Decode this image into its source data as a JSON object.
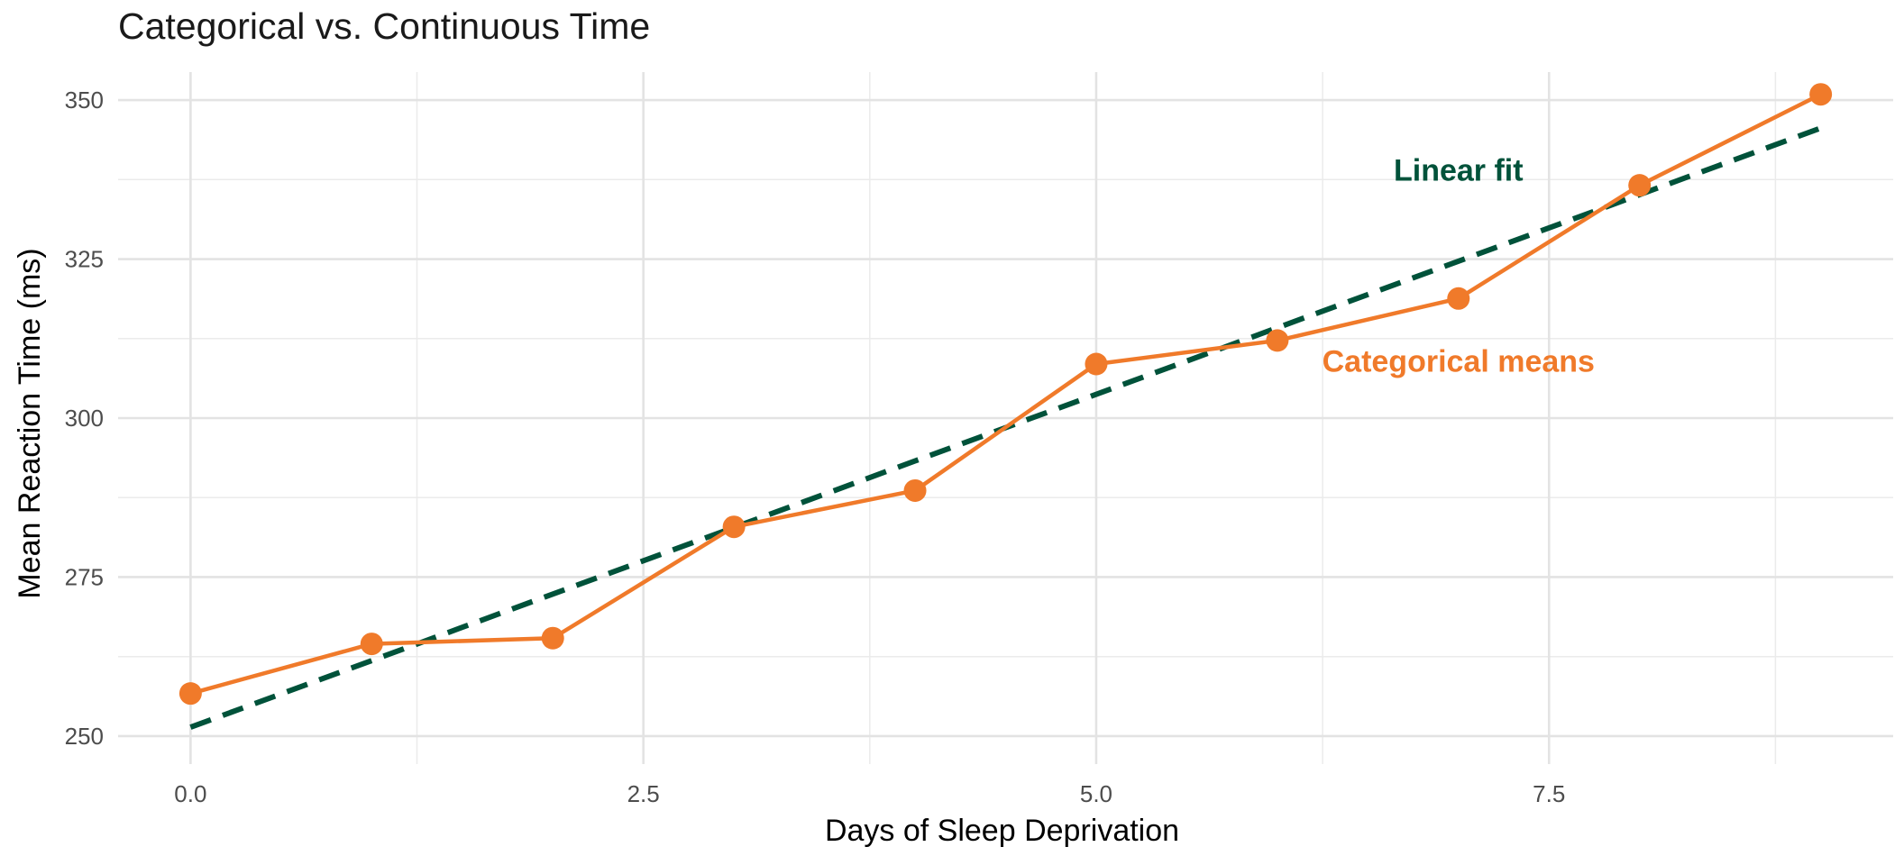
{
  "chart_data": {
    "type": "line",
    "title": "Categorical vs. Continuous Time",
    "xlabel": "Days of Sleep Deprivation",
    "ylabel": "Mean Reaction Time (ms)",
    "xlim": [
      -0.4,
      9.4
    ],
    "ylim": [
      245.6,
      354.4
    ],
    "x_ticks": [
      0.0,
      2.5,
      5.0,
      7.5
    ],
    "x_tick_labels": [
      "0.0",
      "2.5",
      "5.0",
      "7.5"
    ],
    "y_ticks": [
      250,
      275,
      300,
      325,
      350
    ],
    "y_tick_labels": [
      "250",
      "275",
      "300",
      "325",
      "350"
    ],
    "grid": true,
    "series": [
      {
        "name": "Categorical means",
        "style": "solid line with points",
        "color": "#F07A2A",
        "x": [
          0,
          1,
          2,
          3,
          4,
          5,
          6,
          7,
          8,
          9
        ],
        "y": [
          256.7,
          264.5,
          265.4,
          282.9,
          288.6,
          308.5,
          312.2,
          318.8,
          336.6,
          350.9
        ]
      },
      {
        "name": "Linear fit",
        "style": "dashed line",
        "color": "#00523A",
        "x": [
          0,
          9
        ],
        "y": [
          251.4,
          345.6
        ]
      }
    ],
    "annotations": [
      {
        "text": "Linear fit",
        "x": 7.0,
        "y": 339.0,
        "color": "#00523A"
      },
      {
        "text": "Categorical means",
        "x": 7.0,
        "y": 309.0,
        "color": "#F07A2A"
      }
    ]
  }
}
